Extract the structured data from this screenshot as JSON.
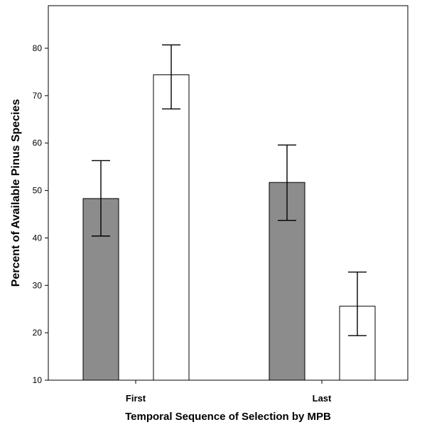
{
  "chart_data": {
    "type": "bar",
    "title": "",
    "xlabel": "Temporal Sequence of Selection by MPB",
    "ylabel": "Percent of Available Pinus Species",
    "categories": [
      "First",
      "Last"
    ],
    "ylim": [
      10,
      88
    ],
    "yticks": [
      10,
      20,
      30,
      40,
      50,
      60,
      70,
      80
    ],
    "grid": false,
    "series": [
      {
        "color": "#8c8c8c",
        "values": [
          48.3,
          51.7
        ],
        "error_low": [
          40.4,
          43.7
        ],
        "error_high": [
          56.3,
          59.6
        ]
      },
      {
        "color": "#ffffff",
        "values": [
          74.4,
          25.6
        ],
        "error_low": [
          67.2,
          19.4
        ],
        "error_high": [
          80.7,
          32.8
        ]
      }
    ]
  }
}
